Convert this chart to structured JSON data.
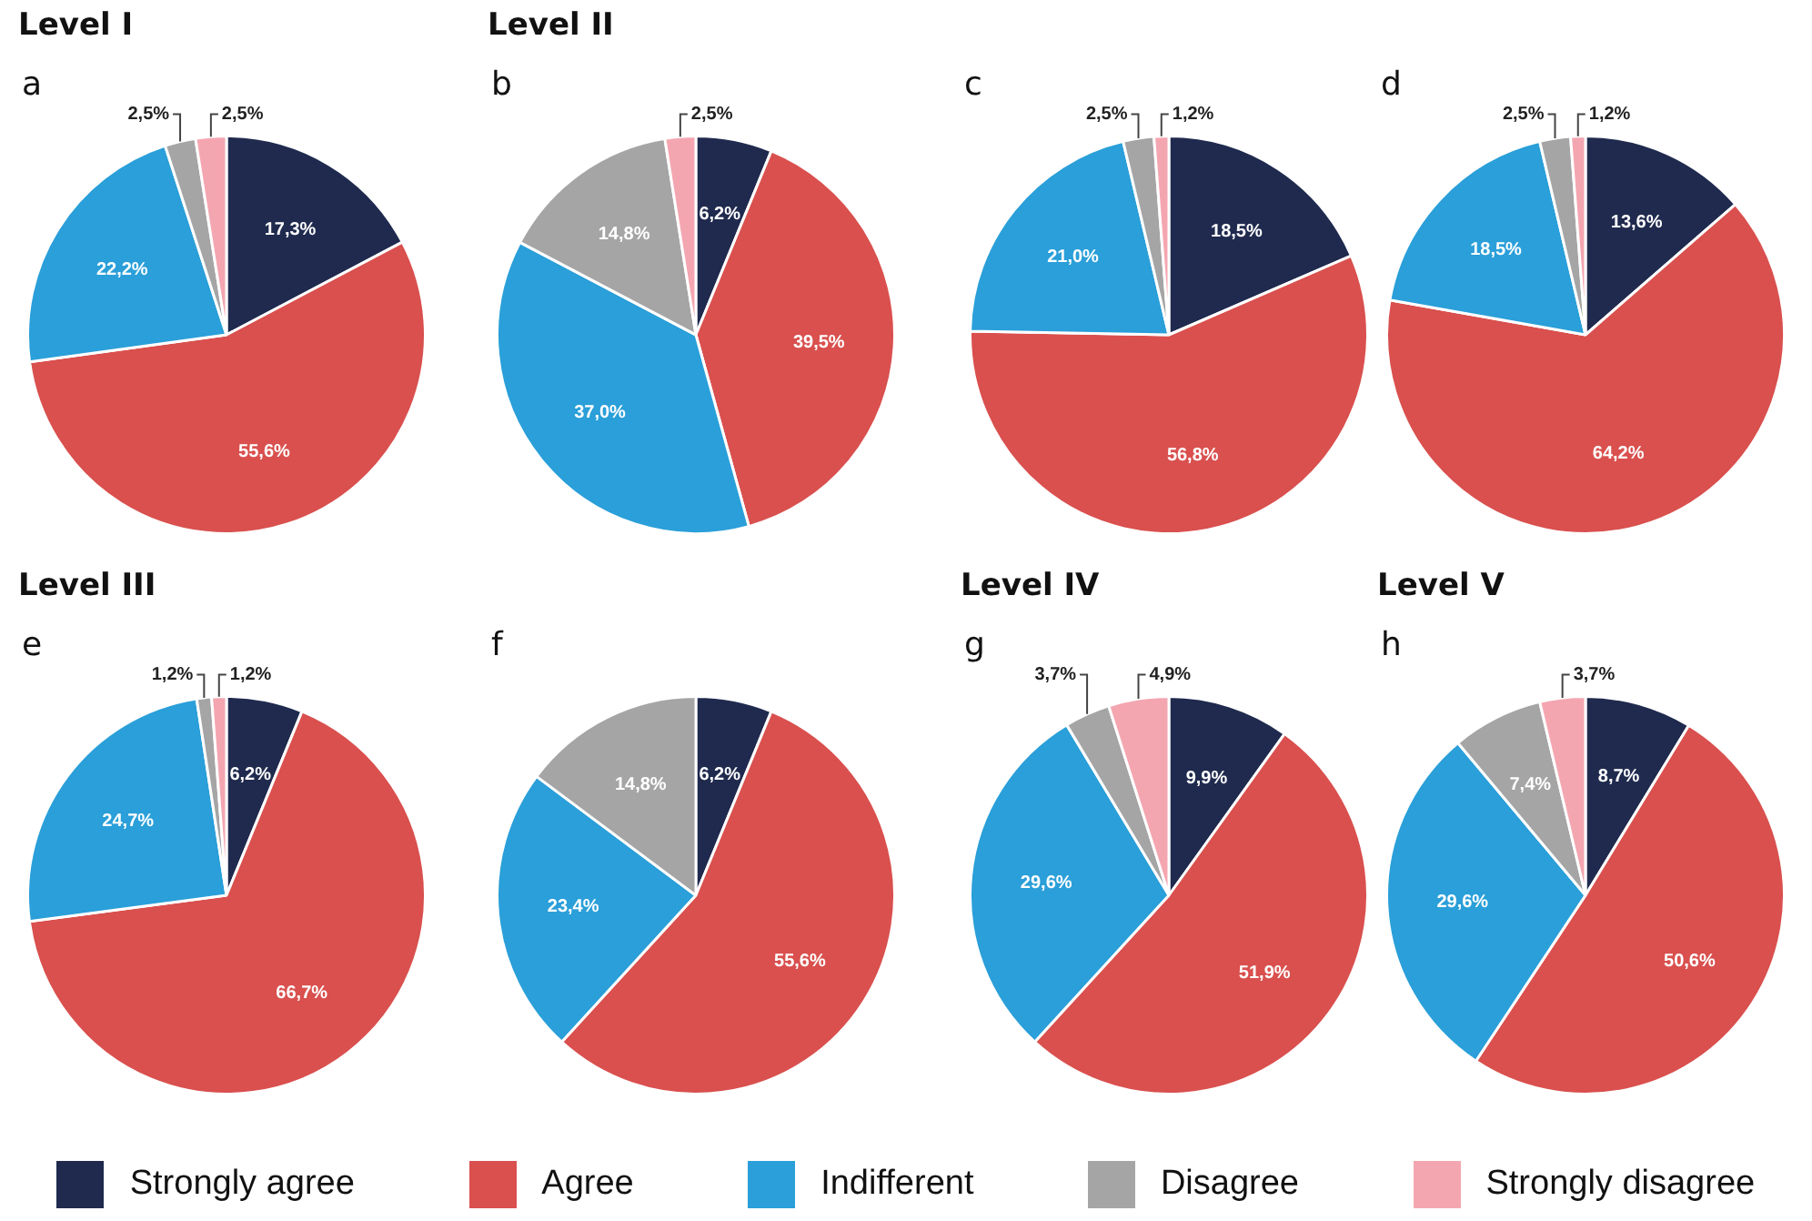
{
  "chart_data": [
    {
      "type": "pie",
      "title": "Level I",
      "subtitle": "a",
      "categories": [
        "Strongly agree",
        "Agree",
        "Indifferent",
        "Disagree",
        "Strongly disagree"
      ],
      "colors": [
        "#1f2a4e",
        "#d9504e",
        "#2a9fd9",
        "#a5a5a5",
        "#f4a6b0"
      ],
      "values": [
        17.3,
        55.6,
        22.2,
        2.5,
        2.5
      ],
      "value_labels": [
        "17,3%",
        "55,6%",
        "22,2%",
        "2,5%",
        "2,5%"
      ],
      "legend": "bottom"
    },
    {
      "type": "pie",
      "title": "Level II",
      "subtitle": "b",
      "categories": [
        null,
        null,
        null,
        null,
        null
      ],
      "colors": [
        "#1f2a4e",
        "#d9504e",
        "#2a9fd9",
        "#a5a5a5",
        "#f4a6b0"
      ],
      "values": [
        6.2,
        39.5,
        37.0,
        14.8,
        2.5
      ],
      "value_labels": [
        "6,2%",
        "39,5%",
        "37,0%",
        "14,8%",
        "2,5%"
      ]
    },
    {
      "type": "pie",
      "subtitle": "c",
      "categories": [
        null,
        null,
        null,
        null,
        null
      ],
      "colors": [
        "#1f2a4e",
        "#d9504e",
        "#2a9fd9",
        "#a5a5a5",
        "#f4a6b0"
      ],
      "values": [
        18.5,
        56.8,
        21.0,
        2.5,
        1.2
      ],
      "value_labels": [
        "18,5%",
        "56,8%",
        "21,0%",
        "2,5%",
        "1,2%"
      ]
    },
    {
      "type": "pie",
      "subtitle": "d",
      "categories": [
        null,
        null,
        null,
        null,
        null
      ],
      "colors": [
        "#1f2a4e",
        "#d9504e",
        "#2a9fd9",
        "#a5a5a5",
        "#f4a6b0"
      ],
      "values": [
        13.6,
        64.2,
        18.5,
        2.5,
        1.2
      ],
      "value_labels": [
        "13,6%",
        "64,2%",
        "18,5%",
        "2,5%",
        "1,2%"
      ]
    },
    {
      "type": "pie",
      "title": "Level III",
      "subtitle": "e",
      "categories": [
        null,
        null,
        null,
        null,
        null
      ],
      "colors": [
        "#1f2a4e",
        "#d9504e",
        "#2a9fd9",
        "#a5a5a5",
        "#f4a6b0"
      ],
      "values": [
        6.2,
        66.7,
        24.7,
        1.2,
        1.2
      ],
      "value_labels": [
        "6,2%",
        "66,7%",
        "24,7%",
        "1,2%",
        "1,2%"
      ]
    },
    {
      "type": "pie",
      "subtitle": "f",
      "categories": [
        null,
        null,
        null,
        null,
        null
      ],
      "colors": [
        "#1f2a4e",
        "#d9504e",
        "#2a9fd9",
        "#a5a5a5",
        "#f4a6b0"
      ],
      "values": [
        6.2,
        55.6,
        23.4,
        14.8,
        null
      ],
      "value_labels": [
        "6,2%",
        "55,6%",
        "23,4%",
        "14,8%",
        null
      ]
    },
    {
      "type": "pie",
      "title": "Level IV",
      "subtitle": "g",
      "categories": [
        null,
        null,
        null,
        null,
        null
      ],
      "colors": [
        "#1f2a4e",
        "#d9504e",
        "#2a9fd9",
        "#a5a5a5",
        "#f4a6b0"
      ],
      "values": [
        9.9,
        51.9,
        29.6,
        3.7,
        4.9
      ],
      "value_labels": [
        "9,9%",
        "51,9%",
        "29,6%",
        "3,7%",
        "4,9%"
      ]
    },
    {
      "type": "pie",
      "title": "Level V",
      "subtitle": "h",
      "categories": [
        null,
        null,
        null,
        null,
        null
      ],
      "colors": [
        "#1f2a4e",
        "#d9504e",
        "#2a9fd9",
        "#a5a5a5",
        "#f4a6b0"
      ],
      "values": [
        8.7,
        50.6,
        29.6,
        7.4,
        3.7
      ],
      "value_labels": [
        "8,7%",
        "50,6%",
        "29,6%",
        "7,4%",
        "3,7%"
      ]
    }
  ]
}
